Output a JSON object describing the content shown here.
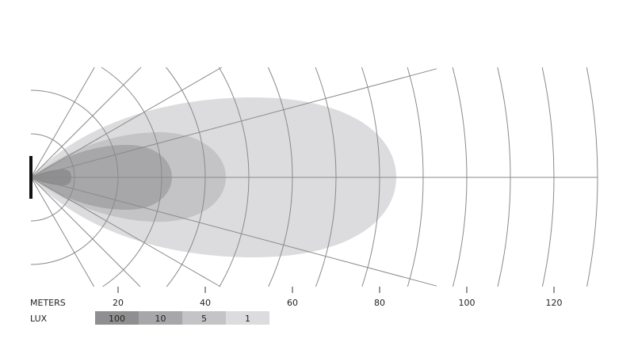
{
  "axis": {
    "label": "METERS",
    "ticks": [
      20,
      40,
      60,
      80,
      100,
      120
    ]
  },
  "legend": {
    "label": "LUX",
    "items": [
      {
        "label": "100",
        "color": "#8f8f91"
      },
      {
        "label": "10",
        "color": "#a7a7a9"
      },
      {
        "label": "5",
        "color": "#c4c4c6"
      },
      {
        "label": "1",
        "color": "#dcdcde"
      }
    ]
  },
  "colors": {
    "grid": "#8a8a8a",
    "light_source": "#111111"
  }
}
